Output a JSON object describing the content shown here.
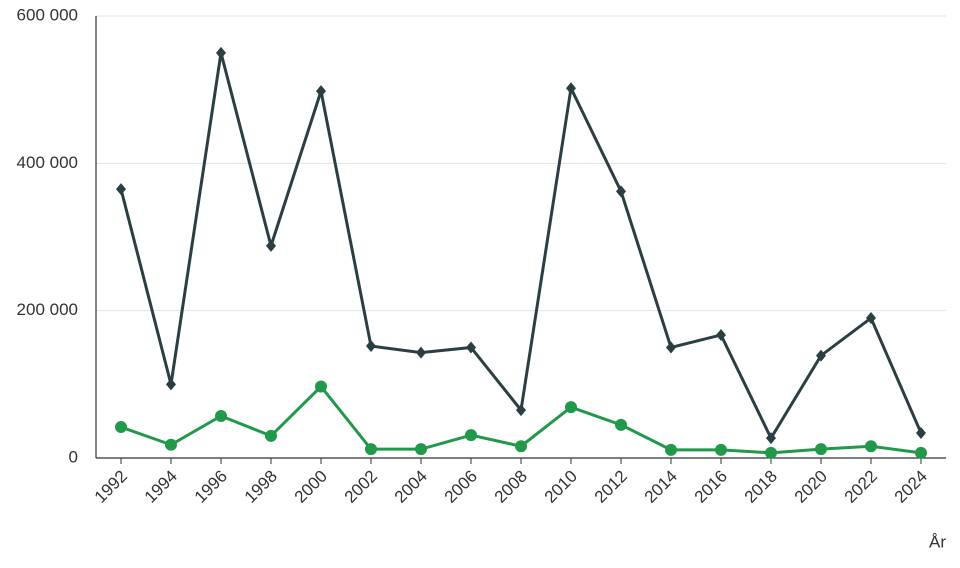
{
  "chart_data": {
    "type": "line",
    "x_label": "År",
    "x": [
      1992,
      1994,
      1996,
      1998,
      2000,
      2002,
      2004,
      2006,
      2008,
      2010,
      2012,
      2014,
      2016,
      2018,
      2020,
      2022,
      2024
    ],
    "xlim": [
      1991,
      2025
    ],
    "series": [
      {
        "color": "#2b3f42",
        "marker": "diamond",
        "values": [
          365000,
          100000,
          550000,
          288000,
          498000,
          152000,
          143000,
          150000,
          65000,
          502000,
          362000,
          150000,
          167000,
          27000,
          139000,
          190000,
          34000
        ]
      },
      {
        "color": "#22994a",
        "marker": "circle",
        "values": [
          42000,
          18000,
          57000,
          30000,
          97000,
          12000,
          12000,
          31000,
          16000,
          69000,
          45000,
          11000,
          11000,
          7000,
          12000,
          16000,
          7000
        ]
      }
    ],
    "ylim": [
      0,
      600000
    ],
    "yticks": [
      {
        "value": 0,
        "label": "0"
      },
      {
        "value": 200000,
        "label": "200 000"
      },
      {
        "value": 400000,
        "label": "400 000"
      },
      {
        "value": 600000,
        "label": "600 000"
      }
    ],
    "grid": true
  }
}
